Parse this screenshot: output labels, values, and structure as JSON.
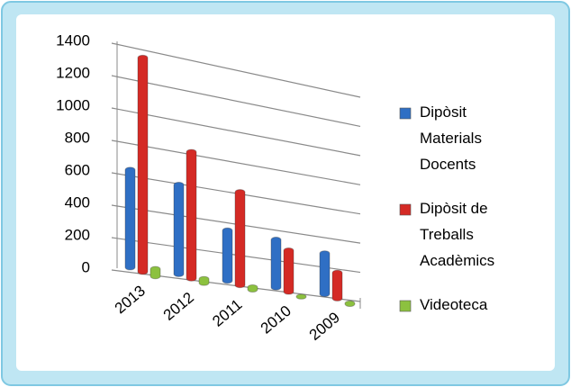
{
  "chart_data": {
    "type": "bar",
    "categories": [
      "2013",
      "2012",
      "2011",
      "2010",
      "2009"
    ],
    "series": [
      {
        "name": "Dipòsit Materials Docents",
        "color": "#2f6fc4",
        "values": [
          620,
          580,
          340,
          330,
          290
        ]
      },
      {
        "name": "Dipòsit de Treballs Acadèmics",
        "color": "#d42a25",
        "values": [
          1350,
          820,
          620,
          290,
          190
        ]
      },
      {
        "name": "Videoteca",
        "color": "#8cc13f",
        "values": [
          60,
          40,
          30,
          10,
          5
        ]
      }
    ],
    "ylim": [
      0,
      1400
    ],
    "yticks": [
      0,
      200,
      400,
      600,
      800,
      1000,
      1200,
      1400
    ],
    "grid": true,
    "legend": "right"
  }
}
